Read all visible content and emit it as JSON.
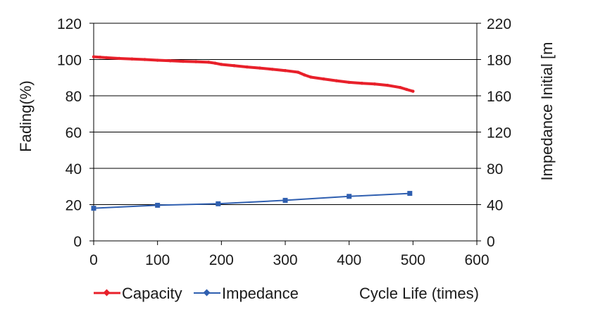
{
  "chart_data": {
    "type": "line",
    "title": "",
    "xlabel": "Cycle Life (times)",
    "ylabel": "Fading(%)",
    "y2label": "Impedance Initial [m",
    "xlim": [
      0,
      600
    ],
    "ylim": [
      0,
      120
    ],
    "y2lim": [
      0,
      220
    ],
    "x_ticks": [
      "0",
      "100",
      "200",
      "300",
      "400",
      "500",
      "600"
    ],
    "y_ticks": [
      "0",
      "20",
      "40",
      "60",
      "80",
      "100",
      "120"
    ],
    "y2_ticks": [
      "0",
      "40",
      "80",
      "120",
      "160",
      "180",
      "220"
    ],
    "grid": "horizontal",
    "legend_position": "bottom-left",
    "colors": {
      "Capacity": "#e8202a",
      "Impedance": "#2f5fb0"
    },
    "series": [
      {
        "name": "Capacity",
        "axis": "left",
        "marker": "diamond",
        "x": [
          0,
          10,
          20,
          40,
          60,
          80,
          100,
          120,
          140,
          160,
          180,
          190,
          200,
          220,
          240,
          260,
          280,
          300,
          320,
          330,
          340,
          360,
          380,
          400,
          420,
          440,
          460,
          480,
          490,
          500
        ],
        "values": [
          101.5,
          101.3,
          101,
          100.6,
          100.3,
          100,
          99.6,
          99.3,
          99,
          98.8,
          98.5,
          98,
          97.3,
          96.6,
          95.9,
          95.3,
          94.6,
          93.9,
          93,
          91.5,
          90.3,
          89.3,
          88.3,
          87.4,
          86.9,
          86.5,
          85.8,
          84.6,
          83.5,
          82.5
        ]
      },
      {
        "name": "Impedance",
        "axis": "right",
        "marker": "square",
        "x": [
          0,
          100,
          195,
          300,
          400,
          495
        ],
        "values": [
          33,
          36,
          37.5,
          41,
          45,
          48
        ]
      }
    ]
  }
}
